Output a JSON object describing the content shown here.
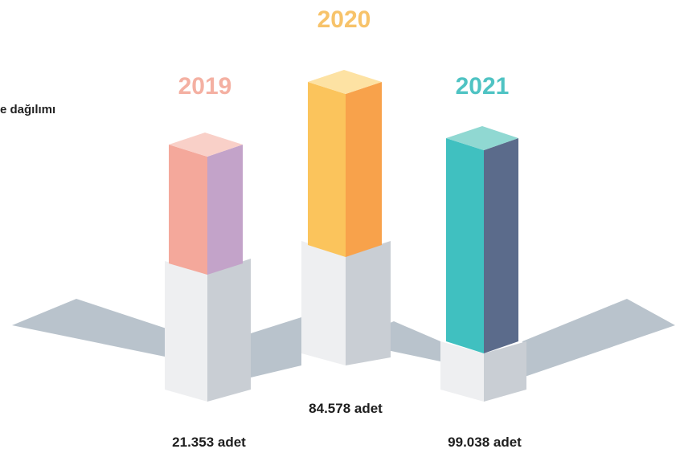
{
  "header": {
    "title": "e dağılımı"
  },
  "items": [
    {
      "year": "2019",
      "label": "21.353 adet"
    },
    {
      "year": "2020",
      "label": "84.578 adet"
    },
    {
      "year": "2021",
      "label": "99.038 adet"
    }
  ]
}
